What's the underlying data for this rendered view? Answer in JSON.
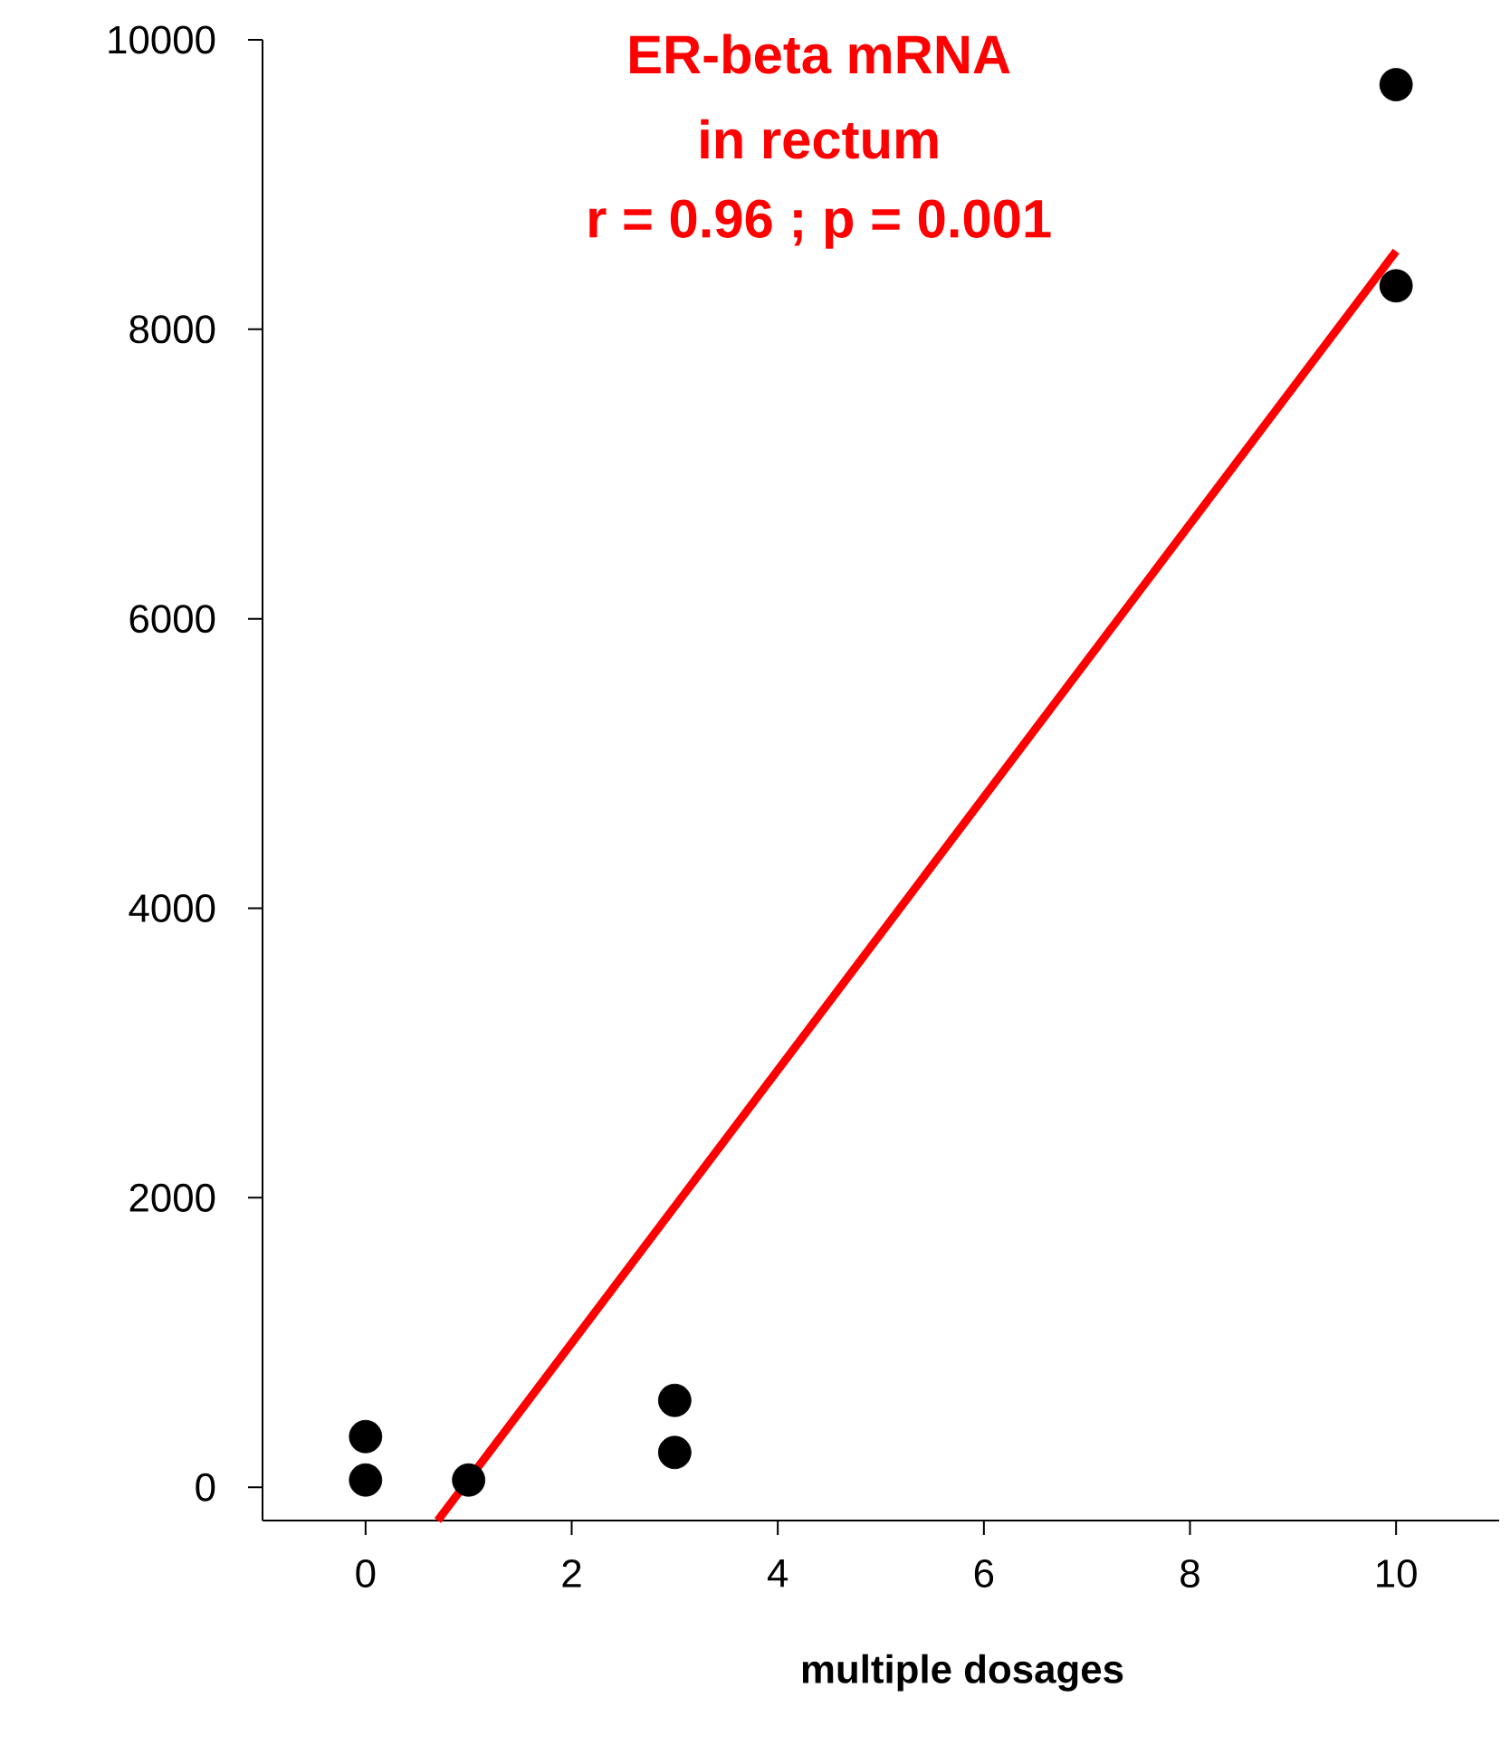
{
  "chart_data": {
    "type": "scatter",
    "xlabel": "multiple dosages",
    "annotations": [
      "ER-beta mRNA",
      "in rectum",
      "r = 0.96 ;  p = 0.001"
    ],
    "series": [
      {
        "color": "#000000",
        "marker": "circle",
        "x": [
          0,
          0,
          1,
          3,
          3,
          10,
          10
        ],
        "values": [
          350,
          50,
          50,
          600,
          240,
          9690,
          8300
        ]
      },
      {
        "type": "line",
        "color": "#ff0000",
        "marker": "none",
        "line_style": "solid",
        "x": [
          0.7,
          10
        ],
        "values": [
          -230,
          8540
        ]
      }
    ],
    "xlim": [
      -1,
      11
    ],
    "ylim": [
      -230,
      10000
    ],
    "xticks": [
      0,
      2,
      4,
      6,
      8,
      10
    ],
    "yticks": [
      0,
      2000,
      4000,
      6000,
      8000,
      10000
    ],
    "grid": false
  }
}
